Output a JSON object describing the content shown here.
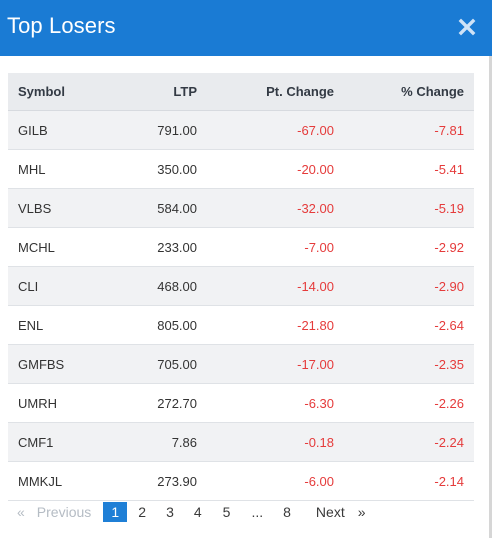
{
  "modal": {
    "title": "Top Losers",
    "close_icon": "close-icon"
  },
  "table": {
    "columns": [
      "Symbol",
      "LTP",
      "Pt. Change",
      "% Change"
    ],
    "rows": [
      {
        "symbol": "GILB",
        "ltp": "791.00",
        "pt_change": "-67.00",
        "pct_change": "-7.81"
      },
      {
        "symbol": "MHL",
        "ltp": "350.00",
        "pt_change": "-20.00",
        "pct_change": "-5.41"
      },
      {
        "symbol": "VLBS",
        "ltp": "584.00",
        "pt_change": "-32.00",
        "pct_change": "-5.19"
      },
      {
        "symbol": "MCHL",
        "ltp": "233.00",
        "pt_change": "-7.00",
        "pct_change": "-2.92"
      },
      {
        "symbol": "CLI",
        "ltp": "468.00",
        "pt_change": "-14.00",
        "pct_change": "-2.90"
      },
      {
        "symbol": "ENL",
        "ltp": "805.00",
        "pt_change": "-21.80",
        "pct_change": "-2.64"
      },
      {
        "symbol": "GMFBS",
        "ltp": "705.00",
        "pt_change": "-17.00",
        "pct_change": "-2.35"
      },
      {
        "symbol": "UMRH",
        "ltp": "272.70",
        "pt_change": "-6.30",
        "pct_change": "-2.26"
      },
      {
        "symbol": "CMF1",
        "ltp": "7.86",
        "pt_change": "-0.18",
        "pct_change": "-2.24"
      },
      {
        "symbol": "MMKJL",
        "ltp": "273.90",
        "pt_change": "-6.00",
        "pct_change": "-2.14"
      }
    ]
  },
  "pagination": {
    "prev_arrow": "«",
    "previous": "Previous",
    "pages": [
      "1",
      "2",
      "3",
      "4",
      "5",
      "...",
      "8"
    ],
    "current": "1",
    "next": "Next",
    "next_arrow": "»"
  },
  "colors": {
    "header_bg": "#1a7bd4",
    "negative": "#e53b3b",
    "active_page": "#1f7fd6"
  }
}
